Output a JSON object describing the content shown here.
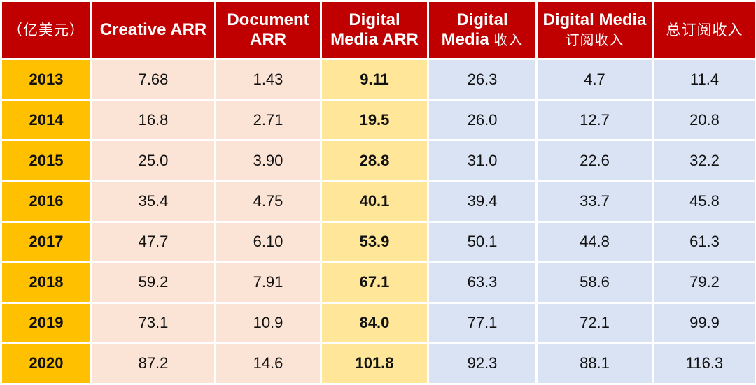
{
  "colors": {
    "header_bg": "#c00000",
    "header_text": "#ffffff",
    "year_bg": "#ffc000",
    "arr_bg": "#fbe4d5",
    "highlight_bg": "#ffe699",
    "revenue_bg": "#dae3f3"
  },
  "chart_data": {
    "type": "table",
    "headers": [
      "（亿美元）",
      "Creative ARR",
      "Document ARR",
      "Digital Media ARR",
      "Digital Media 收入",
      "Digital Media 订阅收入",
      "总订阅收入"
    ],
    "header_lines": [
      [
        "（亿美元）"
      ],
      [
        "Creative ARR"
      ],
      [
        "Document",
        "ARR"
      ],
      [
        "Digital",
        "Media ARR"
      ],
      [
        "Digital",
        "Media",
        "收入"
      ],
      [
        "Digital Media",
        "订阅收入"
      ],
      [
        "总订阅收入"
      ]
    ],
    "rows": [
      [
        "2013",
        "7.68",
        "1.43",
        "9.11",
        "26.3",
        "4.7",
        "11.4"
      ],
      [
        "2014",
        "16.8",
        "2.71",
        "19.5",
        "26.0",
        "12.7",
        "20.8"
      ],
      [
        "2015",
        "25.0",
        "3.90",
        "28.8",
        "31.0",
        "22.6",
        "32.2"
      ],
      [
        "2016",
        "35.4",
        "4.75",
        "40.1",
        "39.4",
        "33.7",
        "45.8"
      ],
      [
        "2017",
        "47.7",
        "6.10",
        "53.9",
        "50.1",
        "44.8",
        "61.3"
      ],
      [
        "2018",
        "59.2",
        "7.91",
        "67.1",
        "63.3",
        "58.6",
        "79.2"
      ],
      [
        "2019",
        "73.1",
        "10.9",
        "84.0",
        "77.1",
        "72.1",
        "99.9"
      ],
      [
        "2020",
        "87.2",
        "14.6",
        "101.8",
        "92.3",
        "88.1",
        "116.3"
      ]
    ]
  }
}
